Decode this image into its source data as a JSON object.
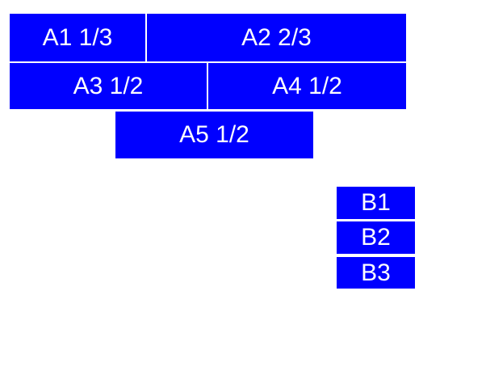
{
  "page": {
    "background": "#ffffff"
  },
  "colors": {
    "box_fill": "#0000ff",
    "box_text": "#ffffff"
  },
  "blocks": {
    "a": [
      {
        "id": "A1",
        "label": "A1 1/3",
        "fraction": "1/3"
      },
      {
        "id": "A2",
        "label": "A2 2/3",
        "fraction": "2/3"
      },
      {
        "id": "A3",
        "label": "A3 1/2",
        "fraction": "1/2"
      },
      {
        "id": "A4",
        "label": "A4 1/2",
        "fraction": "1/2"
      },
      {
        "id": "A5",
        "label": "A5 1/2",
        "fraction": "1/2"
      }
    ],
    "b": [
      {
        "id": "B1",
        "label": "B1"
      },
      {
        "id": "B2",
        "label": "B2"
      },
      {
        "id": "B3",
        "label": "B3"
      }
    ]
  }
}
